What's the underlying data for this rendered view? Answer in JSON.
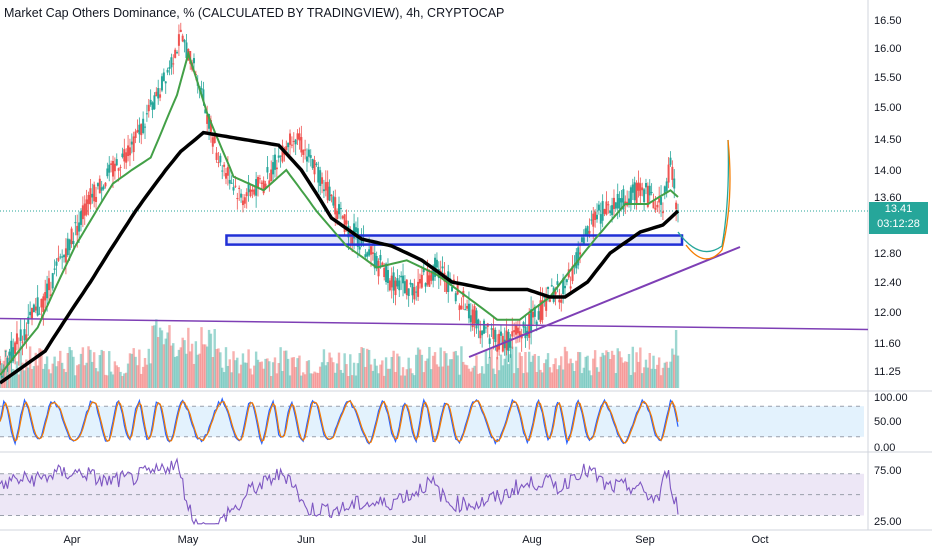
{
  "header": {
    "title": "Market Cap Others Dominance, % (CALCULATED BY TRADINGVIEW), 4h, CRYPTOCAP"
  },
  "price_tag": {
    "value": "13.41",
    "countdown": "03:12:28",
    "color": "#26a69a"
  },
  "colors": {
    "bull": "#26a69a",
    "bear": "#ef5350",
    "ma_fast": "#43a047",
    "ma_slow": "#000000",
    "zone": "#2130d6",
    "trendline": "#7e3fb5",
    "stoch_k": "#2962ff",
    "stoch_d": "#f57c00",
    "rsi": "#7e57c2",
    "panel_fill": "#e3f2fd",
    "rsi_fill": "#ede7f6"
  },
  "chart_data": [
    {
      "type": "candlestick",
      "panel": "price",
      "y_ticks": [
        "16.50",
        "16.00",
        "15.50",
        "15.00",
        "14.50",
        "14.00",
        "13.60",
        "12.80",
        "12.40",
        "12.00",
        "11.60",
        "11.25"
      ],
      "x_ticks": [
        "Apr",
        "May",
        "Jun",
        "Jul",
        "Aug",
        "Sep",
        "Oct"
      ],
      "ylim": [
        11.1,
        16.75
      ],
      "close_path": [
        [
          0,
          11.25
        ],
        [
          6,
          11.7
        ],
        [
          12,
          12.2
        ],
        [
          18,
          12.9
        ],
        [
          24,
          13.6
        ],
        [
          30,
          14.0
        ],
        [
          36,
          14.5
        ],
        [
          42,
          15.2
        ],
        [
          48,
          16.2
        ],
        [
          52,
          15.6
        ],
        [
          58,
          14.2
        ],
        [
          64,
          13.6
        ],
        [
          70,
          13.8
        ],
        [
          78,
          14.6
        ],
        [
          84,
          14.0
        ],
        [
          92,
          13.2
        ],
        [
          98,
          12.8
        ],
        [
          104,
          12.4
        ],
        [
          110,
          12.3
        ],
        [
          116,
          12.6
        ],
        [
          122,
          12.2
        ],
        [
          128,
          11.8
        ],
        [
          134,
          11.6
        ],
        [
          140,
          11.8
        ],
        [
          146,
          12.2
        ],
        [
          150,
          12.3
        ],
        [
          154,
          12.8
        ],
        [
          158,
          13.3
        ],
        [
          164,
          13.5
        ],
        [
          170,
          13.7
        ],
        [
          176,
          13.5
        ],
        [
          178,
          14.1
        ],
        [
          180,
          13.41
        ]
      ],
      "overlays": {
        "ma_fast": [
          [
            0,
            11.2
          ],
          [
            10,
            11.8
          ],
          [
            20,
            12.9
          ],
          [
            30,
            13.8
          ],
          [
            40,
            14.2
          ],
          [
            47,
            15.2
          ],
          [
            50,
            15.9
          ],
          [
            55,
            14.9
          ],
          [
            62,
            13.9
          ],
          [
            70,
            13.7
          ],
          [
            76,
            14.0
          ],
          [
            84,
            13.4
          ],
          [
            92,
            12.9
          ],
          [
            100,
            12.6
          ],
          [
            108,
            12.7
          ],
          [
            116,
            12.5
          ],
          [
            124,
            12.2
          ],
          [
            132,
            11.9
          ],
          [
            138,
            11.9
          ],
          [
            146,
            12.2
          ],
          [
            152,
            12.6
          ],
          [
            158,
            13.0
          ],
          [
            166,
            13.5
          ],
          [
            172,
            13.5
          ],
          [
            178,
            13.7
          ],
          [
            180,
            13.6
          ]
        ],
        "ma_slow": [
          [
            0,
            11.1
          ],
          [
            12,
            11.5
          ],
          [
            24,
            12.4
          ],
          [
            36,
            13.4
          ],
          [
            48,
            14.3
          ],
          [
            54,
            14.6
          ],
          [
            64,
            14.5
          ],
          [
            74,
            14.4
          ],
          [
            80,
            14.0
          ],
          [
            88,
            13.3
          ],
          [
            96,
            13.0
          ],
          [
            104,
            12.9
          ],
          [
            112,
            12.7
          ],
          [
            120,
            12.4
          ],
          [
            130,
            12.3
          ],
          [
            140,
            12.3
          ],
          [
            146,
            12.2
          ],
          [
            150,
            12.2
          ],
          [
            156,
            12.4
          ],
          [
            162,
            12.8
          ],
          [
            170,
            13.1
          ],
          [
            176,
            13.2
          ],
          [
            180,
            13.4
          ]
        ]
      },
      "zone": {
        "low": 12.92,
        "high": 13.05,
        "x_start": 58,
        "x_end": 180
      },
      "support_trendline": [
        [
          124,
          11.55
        ],
        [
          200,
          12.85
        ]
      ],
      "horizontal_trendline": [
        [
          0,
          12.02
        ],
        [
          232,
          11.8
        ]
      ]
    },
    {
      "type": "bar",
      "panel": "volume",
      "note": "volume histogram at base of price pane"
    },
    {
      "type": "line",
      "panel": "stochastic",
      "y_ticks": [
        "100.00",
        "50.00",
        "0.00"
      ],
      "ylim": [
        0,
        100
      ],
      "bands": [
        80,
        20
      ]
    },
    {
      "type": "line",
      "panel": "rsi",
      "y_ticks": [
        "75.00",
        "25.00"
      ],
      "ylim": [
        25,
        75
      ],
      "bands": [
        70,
        50,
        30
      ]
    }
  ]
}
